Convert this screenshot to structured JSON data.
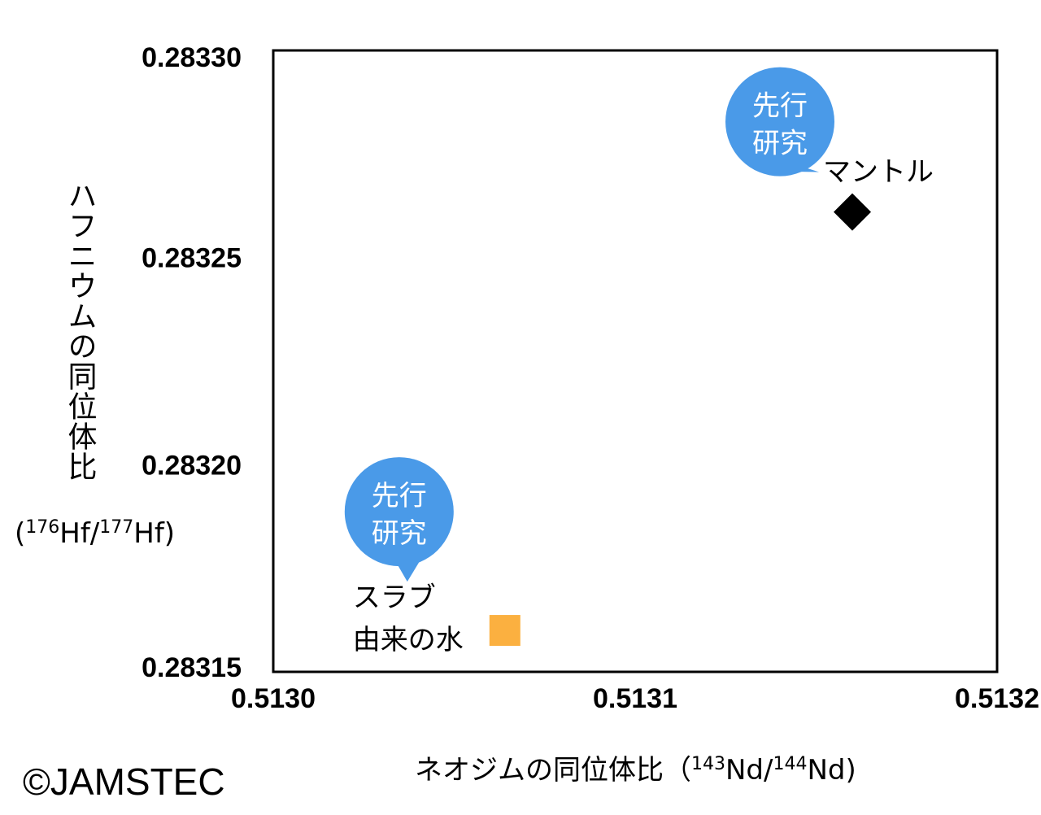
{
  "chart_data": {
    "type": "scatter",
    "xlabel": "ネオジムの同位体比",
    "xlabel_unit": {
      "open": "（",
      "sup1": "143",
      "base1": "Nd/",
      "sup2": "144",
      "base2": "Nd)"
    },
    "ylabel": "ハフニウムの同位体比",
    "ylabel_unit": {
      "open": "(",
      "sup1": "176",
      "base1": "Hf/",
      "sup2": "177",
      "base2": "Hf)"
    },
    "xlim": [
      0.513,
      0.5132
    ],
    "ylim": [
      0.28315,
      0.2833
    ],
    "x_ticks": [
      "0.5130",
      "0.5131",
      "0.5132"
    ],
    "x_tick_values": [
      0.513,
      0.5131,
      0.5132
    ],
    "y_ticks": [
      "0.28330",
      "0.28325",
      "0.28320",
      "0.28315"
    ],
    "y_tick_values": [
      0.2833,
      0.28325,
      0.2832,
      0.28315
    ],
    "grid": false,
    "points": [
      {
        "name": "mantle",
        "label_lines": [
          "マントル"
        ],
        "x": 0.51316,
        "y": 0.283261,
        "marker": "diamond",
        "color": "#000000",
        "callout": [
          "先行",
          "研究"
        ]
      },
      {
        "name": "slab-water",
        "label_lines": [
          "スラブ",
          "由来の水"
        ],
        "x": 0.513064,
        "y": 0.28316,
        "marker": "square",
        "color": "#FBB040",
        "callout": [
          "先行",
          "研究"
        ]
      }
    ],
    "callout_color": "#4A9AE8"
  },
  "credit": "©JAMSTEC"
}
